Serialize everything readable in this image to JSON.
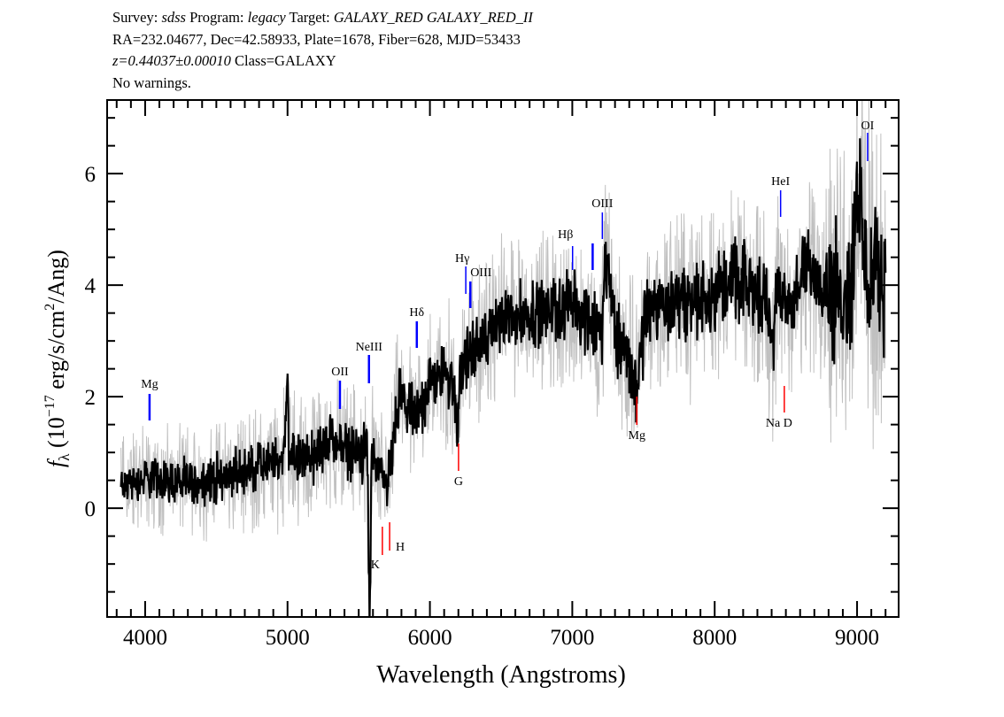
{
  "header": {
    "survey_label": "Survey:",
    "survey": "sdss",
    "program_label": "Program:",
    "program": "legacy",
    "target_label": "Target:",
    "target": "GALAXY_RED GALAXY_RED_II",
    "line2": "RA=232.04677, Dec=42.58933, Plate=1678, Fiber=628, MJD=53433",
    "redshift": "z=0.44037±0.00010",
    "class": "Class=GALAXY",
    "warnings": "No warnings."
  },
  "chart_data": {
    "type": "line",
    "title": "",
    "xlabel": "Wavelength (Angstroms)",
    "ylabel_parts": {
      "f": "f",
      "sub": "λ",
      "pre": " (10",
      "sup1": "−17",
      "mid": " erg/s/cm",
      "sup2": "2",
      "post": "/Ang)"
    },
    "xlim": [
      3733,
      9292
    ],
    "ylim": [
      -1.95,
      7.32
    ],
    "xticks": [
      4000,
      5000,
      6000,
      7000,
      8000,
      9000
    ],
    "yticks": [
      0,
      2,
      4,
      6
    ],
    "grid": false,
    "series": [
      {
        "color": "#000000",
        "error_color": "#c0c0c0",
        "x": [
          3830,
          3850,
          4037,
          4348,
          4660,
          4970,
          5000,
          5010,
          5175,
          5300,
          5486,
          5560,
          5577,
          5590,
          5673,
          5720,
          5780,
          5900,
          6008,
          6150,
          6194,
          6210,
          6275,
          6418,
          6480,
          6792,
          7003,
          7127,
          7208,
          7230,
          7314,
          7413,
          7460,
          7520,
          7725,
          7936,
          8142,
          8347,
          8409,
          8440,
          8558,
          8658,
          8870,
          8969,
          9000,
          9075,
          9200
        ],
        "y": [
          0.4,
          0.43,
          0.54,
          0.45,
          0.65,
          0.86,
          2.5,
          0.9,
          0.9,
          1.22,
          0.97,
          1.0,
          -2.0,
          1.0,
          0.43,
          0.6,
          2.0,
          1.6,
          2.3,
          2.4,
          1.4,
          2.4,
          2.76,
          3.1,
          3.4,
          3.55,
          3.6,
          3.4,
          3.0,
          4.6,
          3.1,
          2.5,
          2.2,
          3.55,
          3.7,
          3.8,
          4.1,
          3.8,
          3.0,
          3.8,
          3.7,
          4.35,
          3.8,
          4.1,
          5.9,
          4.1,
          4.2
        ]
      }
    ],
    "lines": [
      {
        "name": "Mg",
        "wavelength": 4031,
        "color": "#0000ff"
      },
      {
        "name": "OII",
        "wavelength": 5368,
        "color": "#0000ff"
      },
      {
        "name": "NeIII",
        "wavelength": 5572,
        "color": "#0000ff"
      },
      {
        "name": "K",
        "wavelength": 5666,
        "color": "#ff0000"
      },
      {
        "name": "H",
        "wavelength": 5717,
        "color": "#ff0000"
      },
      {
        "name": "Hδ",
        "wavelength": 5908,
        "color": "#0000ff"
      },
      {
        "name": "G",
        "wavelength": 6201,
        "color": "#ff0000"
      },
      {
        "name": "Hγ",
        "wavelength": 6252,
        "color": "#0000ff"
      },
      {
        "name": "OIII",
        "wavelength": 6284,
        "color": "#0000ff"
      },
      {
        "name": "Hβ",
        "wavelength": 7002,
        "color": "#0000ff"
      },
      {
        "name": "",
        "wavelength": 7143,
        "color": "#0000ff"
      },
      {
        "name": "OIII",
        "wavelength": 7211,
        "color": "#0000ff"
      },
      {
        "name": "Mg",
        "wavelength": 7453,
        "color": "#ff0000"
      },
      {
        "name": "Na  D",
        "wavelength": 8489,
        "color": "#ff0000"
      },
      {
        "name": "HeI",
        "wavelength": 8463,
        "color": "#0000ff"
      },
      {
        "name": "OI",
        "wavelength": 9074,
        "color": "#0000ff"
      }
    ]
  }
}
